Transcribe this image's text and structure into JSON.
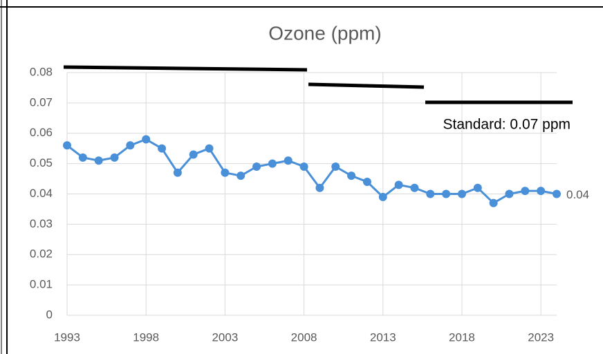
{
  "chart_data": {
    "type": "line",
    "title": "Ozone (ppm)",
    "x": [
      1993,
      1994,
      1995,
      1996,
      1997,
      1998,
      1999,
      2000,
      2001,
      2002,
      2003,
      2004,
      2005,
      2006,
      2007,
      2008,
      2009,
      2010,
      2011,
      2012,
      2013,
      2014,
      2015,
      2016,
      2017,
      2018,
      2019,
      2020,
      2021,
      2022,
      2023,
      2024
    ],
    "series": [
      {
        "name": "Ozone",
        "color": "#4a90d9",
        "values": [
          0.056,
          0.052,
          0.051,
          0.052,
          0.056,
          0.058,
          0.055,
          0.047,
          0.053,
          0.055,
          0.047,
          0.046,
          0.049,
          0.05,
          0.051,
          0.049,
          0.042,
          0.049,
          0.046,
          0.044,
          0.039,
          0.043,
          0.042,
          0.04,
          0.04,
          0.04,
          0.042,
          0.037,
          0.04,
          0.041,
          0.041,
          0.04
        ],
        "value_labels": {
          "31": "0.04"
        }
      }
    ],
    "xlim": [
      1993,
      2024
    ],
    "xticks": [
      1993,
      1998,
      2003,
      2008,
      2013,
      2018,
      2023
    ],
    "ylim": [
      0,
      0.08
    ],
    "yticks": [
      0,
      0.01,
      0.02,
      0.03,
      0.04,
      0.05,
      0.06,
      0.07,
      0.08
    ],
    "grid": true,
    "annotations": [
      "Standard: 0.07 ppm"
    ]
  }
}
